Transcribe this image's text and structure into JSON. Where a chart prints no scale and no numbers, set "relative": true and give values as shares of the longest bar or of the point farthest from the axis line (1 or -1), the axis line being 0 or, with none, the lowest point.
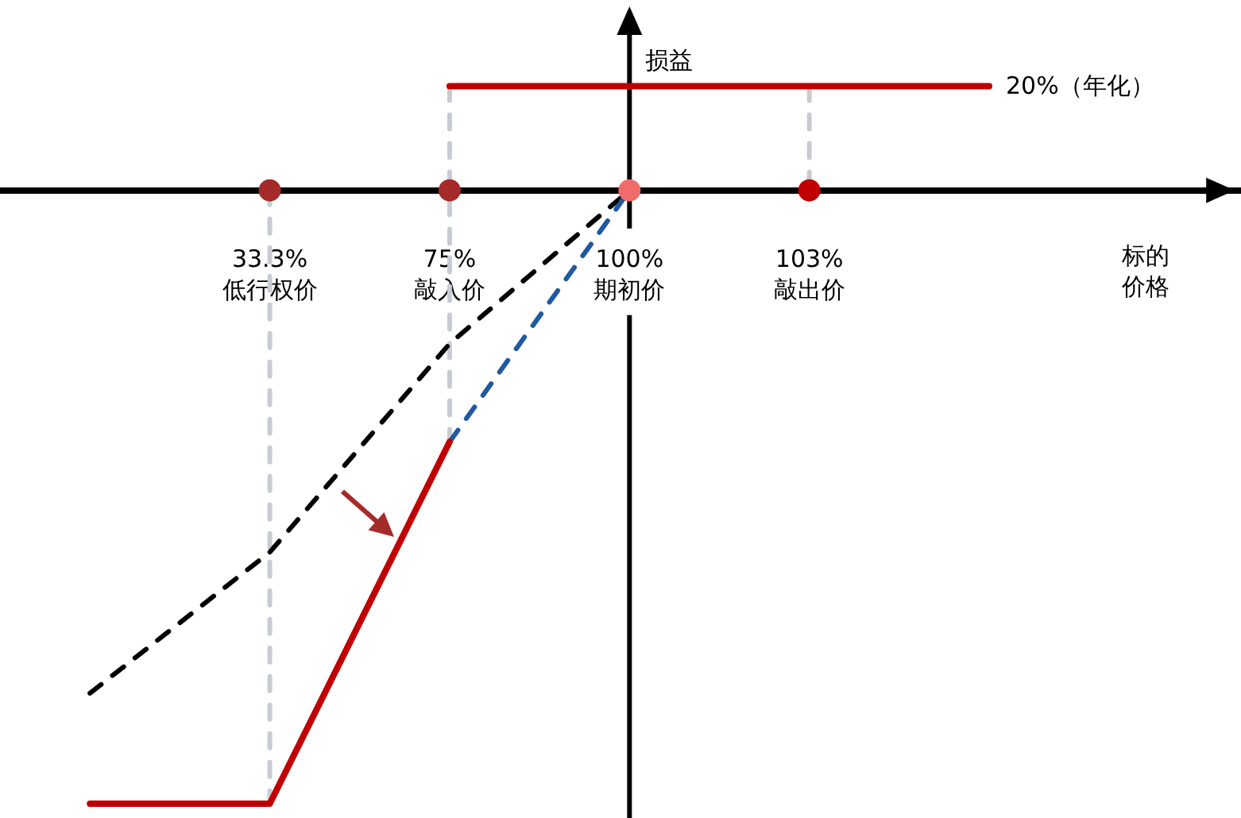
{
  "chart_data": {
    "type": "line",
    "relative": true,
    "categories": [
      null,
      "33.3%\n低行权价",
      "75%\n敲入价",
      "100%\n期初价",
      "103%\n敲出价",
      null
    ],
    "xlabel": "标的价格",
    "ylabel": "损益",
    "ref_lines": [
      {
        "axis": "x",
        "value": "100%\n期初价",
        "color": "#000000"
      }
    ],
    "series": [
      {
        "color": "#c8ccd2",
        "line_style": "dashed",
        "marker": "none",
        "x": [
          "33.3%\n低行权价",
          "33.3%\n低行权价"
        ],
        "values": [
          0,
          -1
        ]
      },
      {
        "color": "#c8ccd2",
        "line_style": "dashed",
        "marker": "none",
        "x": [
          "75%\n敲入价",
          "75%\n敲入价"
        ],
        "values": [
          0.17,
          -0.41
        ]
      },
      {
        "color": "#c8ccd2",
        "line_style": "dashed",
        "marker": "none",
        "x": [
          "103%\n敲出价",
          "103%\n敲出价"
        ],
        "values": [
          0.17,
          0
        ]
      },
      {
        "color": "#000000",
        "line_style": "dashed",
        "marker": "none",
        "values": [
          -0.82,
          -0.59,
          -0.25,
          0,
          null,
          null
        ]
      },
      {
        "color": "#1f5aa0",
        "line_style": "dashed",
        "marker": "none",
        "values": [
          null,
          null,
          -0.41,
          0,
          null,
          null
        ]
      },
      {
        "color": "#c00000",
        "line_style": "solid",
        "marker": "none",
        "values": [
          -1,
          -1,
          -0.41,
          null,
          null,
          null
        ]
      },
      {
        "name": "20%（年化）",
        "color": "#c00000",
        "line_style": "solid",
        "marker": "none",
        "values": [
          null,
          null,
          0.17,
          0.17,
          0.17,
          0.17
        ]
      },
      {
        "type": "scatter",
        "marker": "circle",
        "x": [
          "33.3%\n低行权价",
          "75%\n敲入价",
          "100%\n期初价",
          "103%\n敲出价"
        ],
        "values": [
          0,
          0,
          0,
          0
        ],
        "colors": [
          "#a52a2a",
          "#a52a2a",
          "#f26b6b",
          "#c00000"
        ]
      }
    ]
  }
}
